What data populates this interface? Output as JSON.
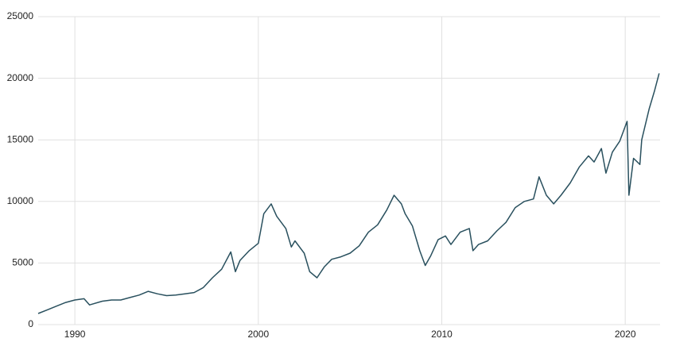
{
  "chart_data": {
    "type": "line",
    "x": [
      1988.0,
      1988.5,
      1989.0,
      1989.5,
      1990.0,
      1990.5,
      1990.8,
      1991.5,
      1992.0,
      1992.5,
      1993.0,
      1993.5,
      1994.0,
      1994.5,
      1995.0,
      1995.5,
      1996.0,
      1996.5,
      1997.0,
      1997.5,
      1998.0,
      1998.5,
      1998.75,
      1999.0,
      1999.5,
      2000.0,
      2000.3,
      2000.7,
      2001.0,
      2001.5,
      2001.8,
      2002.0,
      2002.5,
      2002.8,
      2003.2,
      2003.6,
      2004.0,
      2004.5,
      2005.0,
      2005.5,
      2006.0,
      2006.5,
      2007.0,
      2007.4,
      2007.8,
      2008.0,
      2008.4,
      2008.8,
      2009.1,
      2009.4,
      2009.8,
      2010.2,
      2010.5,
      2011.0,
      2011.5,
      2011.7,
      2012.0,
      2012.5,
      2013.0,
      2013.5,
      2014.0,
      2014.5,
      2015.0,
      2015.3,
      2015.7,
      2016.1,
      2016.5,
      2017.0,
      2017.5,
      2018.0,
      2018.3,
      2018.7,
      2018.95,
      2019.3,
      2019.7,
      2020.1,
      2020.2,
      2020.45,
      2020.8,
      2020.9,
      2021.3,
      2021.6,
      2021.85
    ],
    "series": [
      {
        "color": "#29505e",
        "values": [
          900,
          1200,
          1500,
          1800,
          2000,
          2100,
          1600,
          1900,
          2000,
          2000,
          2200,
          2400,
          2700,
          2500,
          2350,
          2400,
          2500,
          2600,
          3000,
          3800,
          4500,
          5900,
          4300,
          5200,
          6000,
          6600,
          9000,
          9800,
          8800,
          7800,
          6300,
          6800,
          5800,
          4300,
          3800,
          4700,
          5300,
          5500,
          5800,
          6400,
          7500,
          8100,
          9300,
          10500,
          9800,
          9000,
          8000,
          6000,
          4800,
          5600,
          6900,
          7200,
          6500,
          7500,
          7800,
          6000,
          6500,
          6800,
          7600,
          8300,
          9500,
          10000,
          10200,
          12000,
          10500,
          9800,
          10500,
          11500,
          12800,
          13700,
          13200,
          14300,
          12300,
          14000,
          14900,
          16500,
          10500,
          13500,
          13000,
          15000,
          17500,
          19000,
          20400
        ]
      }
    ],
    "xlim": [
      1988,
      2021.9
    ],
    "xticks": [
      1990,
      2000,
      2010,
      2020
    ],
    "ylim": [
      0,
      25000
    ],
    "yticks": [
      0,
      5000,
      10000,
      15000,
      20000,
      25000
    ],
    "grid": true
  }
}
